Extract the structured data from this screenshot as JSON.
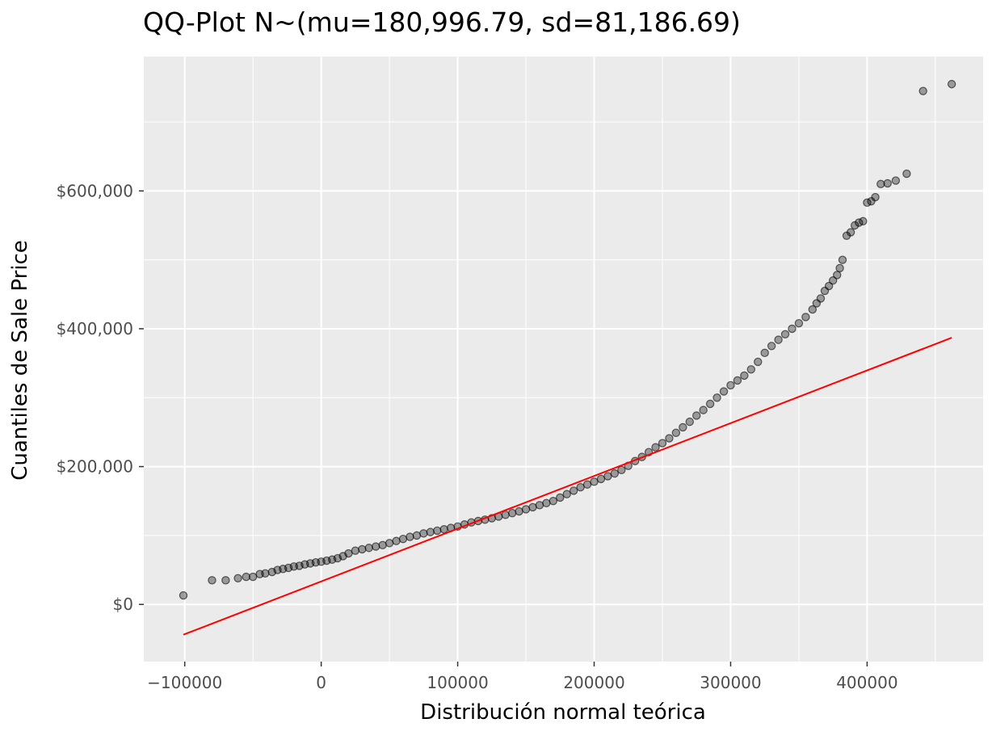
{
  "chart_data": {
    "type": "scatter",
    "title": "QQ-Plot N~(mu=180,996.79, sd=81,186.69)",
    "xlabel": "Distribución normal teórica",
    "ylabel": "Cuantiles de Sale Price",
    "xlim": [
      -130000,
      485000
    ],
    "ylim": [
      -83000,
      795000
    ],
    "x_ticks": [
      -100000,
      0,
      100000,
      200000,
      300000,
      400000
    ],
    "x_tick_labels": [
      "−100000",
      "0",
      "100000",
      "200000",
      "300000",
      "400000"
    ],
    "y_ticks": [
      0,
      200000,
      400000,
      600000
    ],
    "y_tick_labels": [
      "$0",
      "$200,000",
      "$400,000",
      "$600,000"
    ],
    "grid": true,
    "background": "#ebebeb",
    "point_color": "#000000",
    "point_alpha": 0.35,
    "reference_line": {
      "color": "#ff0000",
      "points": [
        [
          -101000,
          -44000
        ],
        [
          462000,
          387000
        ]
      ]
    },
    "series": [
      {
        "points": [
          [
            -101000,
            13000
          ],
          [
            -80000,
            35000
          ],
          [
            -70000,
            35000
          ],
          [
            -61000,
            38000
          ],
          [
            -55000,
            40000
          ],
          [
            -50000,
            40000
          ],
          [
            -45000,
            44000
          ],
          [
            -41000,
            45000
          ],
          [
            -36000,
            47000
          ],
          [
            -32000,
            50000
          ],
          [
            -28000,
            51500
          ],
          [
            -24000,
            53000
          ],
          [
            -20000,
            55000
          ],
          [
            -16000,
            56000
          ],
          [
            -12000,
            58000
          ],
          [
            -8000,
            59500
          ],
          [
            -4000,
            61000
          ],
          [
            0,
            62000
          ],
          [
            4000,
            63500
          ],
          [
            8000,
            65000
          ],
          [
            12000,
            67000
          ],
          [
            16000,
            70000
          ],
          [
            20000,
            74000
          ],
          [
            25000,
            78000
          ],
          [
            30000,
            80000
          ],
          [
            35000,
            82000
          ],
          [
            40000,
            84000
          ],
          [
            45000,
            86000
          ],
          [
            50000,
            89000
          ],
          [
            55000,
            92000
          ],
          [
            60000,
            95000
          ],
          [
            65000,
            98000
          ],
          [
            70000,
            100000
          ],
          [
            75000,
            103000
          ],
          [
            80000,
            105000
          ],
          [
            85000,
            107000
          ],
          [
            90000,
            109000
          ],
          [
            95000,
            111000
          ],
          [
            100000,
            113000
          ],
          [
            105000,
            116000
          ],
          [
            110000,
            119000
          ],
          [
            115000,
            121000
          ],
          [
            120000,
            123000
          ],
          [
            125000,
            125000
          ],
          [
            130000,
            127500
          ],
          [
            135000,
            130000
          ],
          [
            140000,
            132500
          ],
          [
            145000,
            135000
          ],
          [
            150000,
            138000
          ],
          [
            155000,
            141000
          ],
          [
            160000,
            144000
          ],
          [
            165000,
            147000
          ],
          [
            170000,
            150000
          ],
          [
            175000,
            155000
          ],
          [
            180000,
            160000
          ],
          [
            185000,
            165000
          ],
          [
            190000,
            170000
          ],
          [
            195000,
            174000
          ],
          [
            200000,
            178000
          ],
          [
            205000,
            182000
          ],
          [
            210000,
            186000
          ],
          [
            215000,
            190000
          ],
          [
            220000,
            195000
          ],
          [
            225000,
            201000
          ],
          [
            230000,
            208000
          ],
          [
            235000,
            214000
          ],
          [
            240000,
            221000
          ],
          [
            245000,
            228000
          ],
          [
            250000,
            234000
          ],
          [
            255000,
            241000
          ],
          [
            260000,
            249000
          ],
          [
            265000,
            257000
          ],
          [
            270000,
            265000
          ],
          [
            275000,
            274000
          ],
          [
            280000,
            282000
          ],
          [
            285000,
            291000
          ],
          [
            290000,
            300000
          ],
          [
            295000,
            309000
          ],
          [
            300000,
            318000
          ],
          [
            305000,
            325000
          ],
          [
            310000,
            332000
          ],
          [
            315000,
            341000
          ],
          [
            320000,
            352000
          ],
          [
            325000,
            365000
          ],
          [
            330000,
            375000
          ],
          [
            335000,
            384000
          ],
          [
            340000,
            392000
          ],
          [
            345000,
            400000
          ],
          [
            350000,
            408000
          ],
          [
            355000,
            417000
          ],
          [
            360000,
            428000
          ],
          [
            363000,
            437000
          ],
          [
            366000,
            444000
          ],
          [
            369000,
            455000
          ],
          [
            372000,
            462000
          ],
          [
            375000,
            470000
          ],
          [
            378000,
            478000
          ],
          [
            380000,
            488000
          ],
          [
            382000,
            500000
          ],
          [
            385000,
            535000
          ],
          [
            388000,
            540000
          ],
          [
            391000,
            550000
          ],
          [
            394000,
            554000
          ],
          [
            397000,
            556000
          ],
          [
            400000,
            583000
          ],
          [
            403000,
            585000
          ],
          [
            406000,
            591000
          ],
          [
            410000,
            610000
          ],
          [
            415000,
            611000
          ],
          [
            421000,
            615000
          ],
          [
            429000,
            625000
          ],
          [
            441000,
            745000
          ],
          [
            462000,
            755000
          ]
        ]
      }
    ]
  }
}
